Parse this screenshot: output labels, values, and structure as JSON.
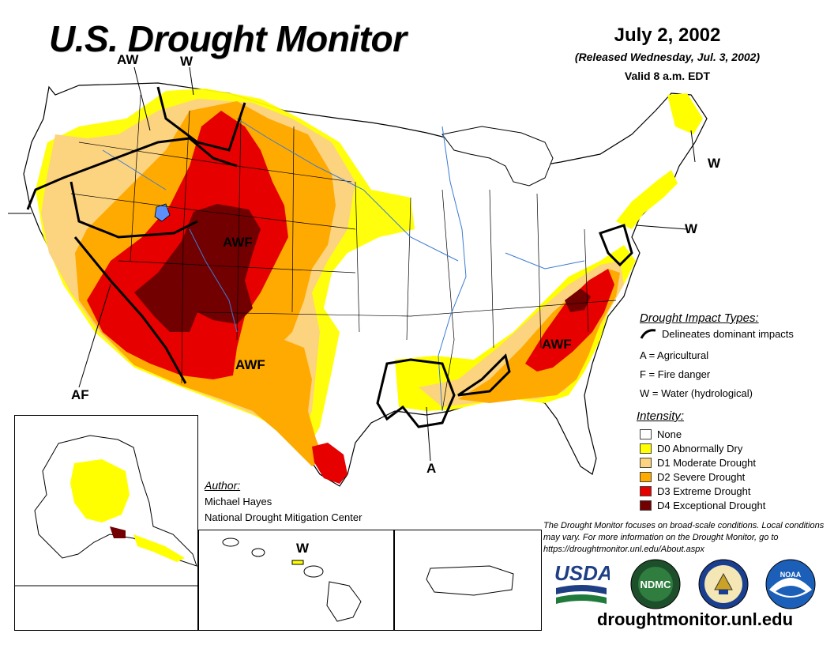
{
  "header": {
    "title": "U.S. Drought Monitor",
    "date": "July 2, 2002",
    "released": "(Released Wednesday, Jul. 3, 2002)",
    "valid": "Valid 8 a.m. EDT"
  },
  "impact_labels": {
    "aw": "AW",
    "w_nw": "W",
    "awf_west": "AWF",
    "awf_sw": "AWF",
    "af": "AF",
    "a_gulf": "A",
    "awf_se": "AWF",
    "w_ne": "W",
    "w_midatl": "W",
    "w_hawaii": "W"
  },
  "legend": {
    "impact_title": "Drought Impact Types:",
    "delineates": "Delineates dominant impacts",
    "agricultural": "A = Agricultural",
    "fire": "F = Fire danger",
    "water": "W = Water (hydrological)",
    "intensity_title": "Intensity:",
    "levels": [
      {
        "label": "None",
        "color": "#ffffff"
      },
      {
        "label": "D0 Abnormally Dry",
        "color": "#ffff00"
      },
      {
        "label": "D1 Moderate Drought",
        "color": "#fcd37f"
      },
      {
        "label": "D2 Severe Drought",
        "color": "#ffaa00"
      },
      {
        "label": "D3 Extreme Drought",
        "color": "#e60000"
      },
      {
        "label": "D4 Exceptional Drought",
        "color": "#730000"
      }
    ]
  },
  "author": {
    "heading": "Author:",
    "name": "Michael Hayes",
    "org": "National Drought Mitigation Center"
  },
  "disclaimer": "The Drought Monitor focuses on broad-scale conditions. Local conditions may vary. For more information on the Drought Monitor, go to https://droughtmonitor.unl.edu/About.aspx",
  "logos": {
    "usda": "USDA",
    "ndmc": "NDMC",
    "noaa": "NOAA"
  },
  "footer_url": "droughtmonitor.unl.edu",
  "colors": {
    "d0": "#ffff00",
    "d1": "#fcd37f",
    "d2": "#ffaa00",
    "d3": "#e60000",
    "d4": "#730000",
    "water": "#5b8ff9",
    "border": "#000000"
  }
}
